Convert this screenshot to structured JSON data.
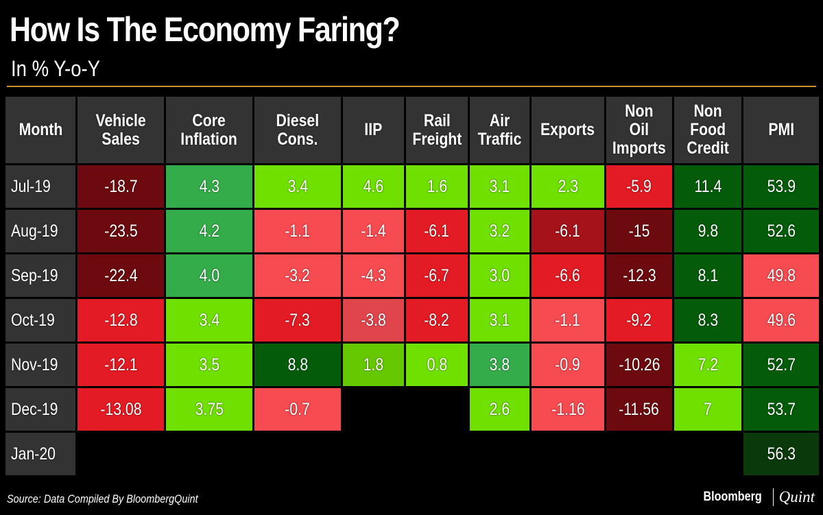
{
  "title": "How Is The Economy Faring?",
  "subtitle": "In % Y-o-Y",
  "source": "Source: Data Compiled By BloombergQuint",
  "logo": {
    "primary": "Bloomberg",
    "secondary": "Quint"
  },
  "palette": {
    "DR": "#6c0a0f",
    "R2": "#a5121a",
    "R": "#e31b24",
    "RP": "#e0454c",
    "LR": "#f64b51",
    "DG": "#045c0b",
    "JG": "#0a3a0b",
    "G": "#35ac4a",
    "L": "#6fe000",
    "L2": "#66c800",
    "none": "#000000"
  },
  "chart_data": {
    "type": "table",
    "title": "How Is The Economy Faring?",
    "subtitle": "In % Y-o-Y",
    "columns": [
      "Month",
      "Vehicle\nSales",
      "Core\nInflation",
      "Diesel\nCons.",
      "IIP",
      "Rail\nFreight",
      "Air\nTraffic",
      "Exports",
      "Non\nOil\nImports",
      "Non\nFood\nCredit",
      "PMI"
    ],
    "rows": [
      {
        "month": "Jul-19",
        "values": [
          "-18.7",
          "4.3",
          "3.4",
          "4.6",
          "1.6",
          "3.1",
          "2.3",
          "-5.9",
          "11.4",
          "53.9"
        ],
        "colors": [
          "DR",
          "G",
          "L",
          "L",
          "L",
          "L",
          "L",
          "R",
          "DG",
          "DG"
        ]
      },
      {
        "month": "Aug-19",
        "values": [
          "-23.5",
          "4.2",
          "-1.1",
          "-1.4",
          "-6.1",
          "3.2",
          "-6.1",
          "-15",
          "9.8",
          "52.6"
        ],
        "colors": [
          "DR",
          "G",
          "LR",
          "LR",
          "R",
          "L",
          "R2",
          "DR",
          "DG",
          "DG"
        ]
      },
      {
        "month": "Sep-19",
        "values": [
          "-22.4",
          "4.0",
          "-3.2",
          "-4.3",
          "-6.7",
          "3.0",
          "-6.6",
          "-12.3",
          "8.1",
          "49.8"
        ],
        "colors": [
          "DR",
          "G",
          "LR",
          "LR",
          "R",
          "L",
          "R",
          "DR",
          "DG",
          "LR"
        ]
      },
      {
        "month": "Oct-19",
        "values": [
          "-12.8",
          "3.4",
          "-7.3",
          "-3.8",
          "-8.2",
          "3.1",
          "-1.1",
          "-9.2",
          "8.3",
          "49.6"
        ],
        "colors": [
          "R",
          "L",
          "R",
          "RP",
          "R",
          "L",
          "LR",
          "R",
          "DG",
          "LR"
        ]
      },
      {
        "month": "Nov-19",
        "values": [
          "-12.1",
          "3.5",
          "8.8",
          "1.8",
          "0.8",
          "3.8",
          "-0.9",
          "-10.26",
          "7.2",
          "52.7"
        ],
        "colors": [
          "R",
          "L",
          "DG",
          "L2",
          "L",
          "G",
          "LR",
          "DR",
          "L",
          "DG"
        ]
      },
      {
        "month": "Dec-19",
        "values": [
          "-13.08",
          "3.75",
          "-0.7",
          "",
          "",
          "2.6",
          "-1.16",
          "-11.56",
          "7",
          "53.7"
        ],
        "colors": [
          "R",
          "L",
          "LR",
          "none",
          "none",
          "L",
          "LR",
          "DR",
          "L",
          "DG"
        ]
      },
      {
        "month": "Jan-20",
        "values": [
          "",
          "",
          "",
          "",
          "",
          "",
          "",
          "",
          "",
          "56.3"
        ],
        "colors": [
          "none",
          "none",
          "none",
          "none",
          "none",
          "none",
          "none",
          "none",
          "none",
          "JG"
        ]
      }
    ]
  }
}
